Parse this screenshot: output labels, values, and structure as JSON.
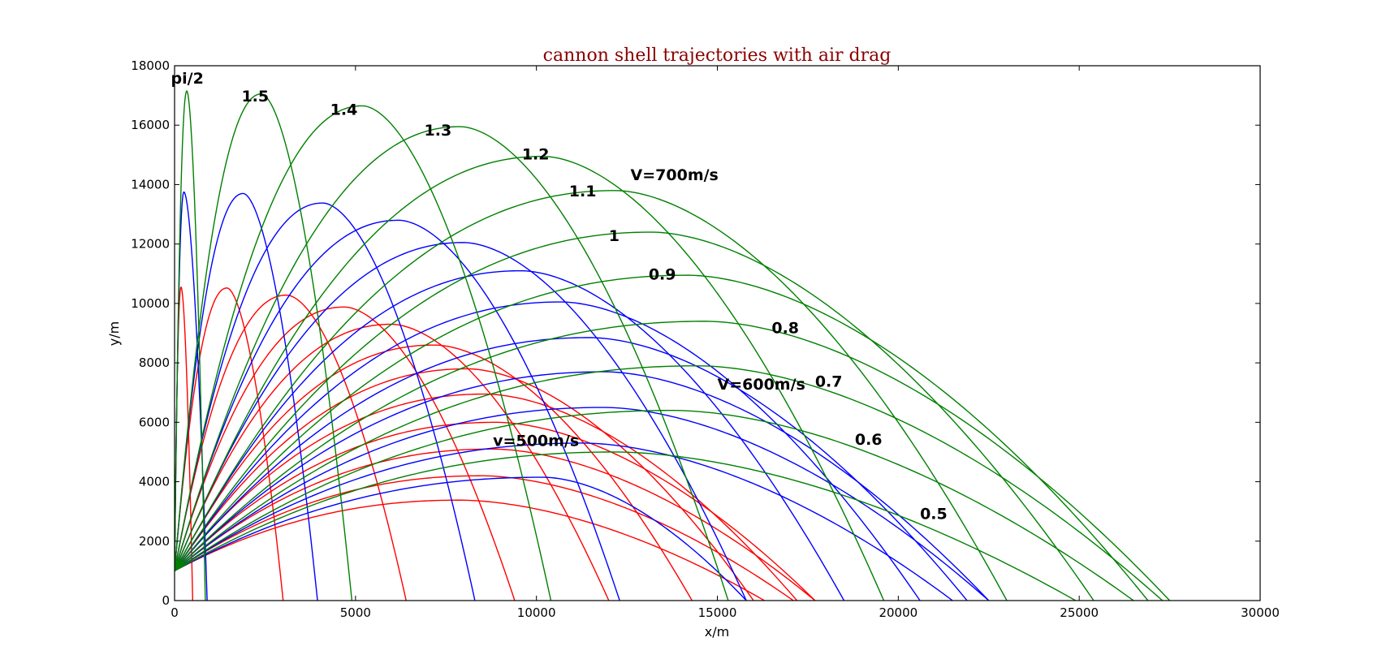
{
  "chart_data": {
    "type": "line",
    "title": "cannon shell trajectories with air drag",
    "xlabel": "x/m",
    "ylabel": "y/m",
    "xlim": [
      0,
      30000
    ],
    "ylim": [
      0,
      18000
    ],
    "xticks": [
      0,
      5000,
      10000,
      15000,
      20000,
      25000,
      30000
    ],
    "yticks": [
      0,
      2000,
      4000,
      6000,
      8000,
      10000,
      12000,
      14000,
      16000,
      18000
    ],
    "grid": false,
    "launch_height": 1000,
    "colors": {
      "v500": "#ff0000",
      "v600": "#0000ff",
      "v700": "#008000"
    },
    "series": [
      {
        "speed": "v500",
        "angle": "pi/2",
        "apex": [
          180,
          10550
        ],
        "landing": 500
      },
      {
        "speed": "v500",
        "angle": "1.5",
        "apex": [
          1450,
          10520
        ],
        "landing": 3000
      },
      {
        "speed": "v500",
        "angle": "1.4",
        "apex": [
          3100,
          10280
        ],
        "landing": 6400
      },
      {
        "speed": "v500",
        "angle": "1.3",
        "apex": [
          4700,
          9880
        ],
        "landing": 9400
      },
      {
        "speed": "v500",
        "angle": "1.2",
        "apex": [
          6000,
          9300
        ],
        "landing": 12000
      },
      {
        "speed": "v500",
        "angle": "1.1",
        "apex": [
          7200,
          8600
        ],
        "landing": 14300
      },
      {
        "speed": "v500",
        "angle": "1",
        "apex": [
          8100,
          7800
        ],
        "landing": 16000
      },
      {
        "speed": "v500",
        "angle": "0.9",
        "apex": [
          8600,
          6950
        ],
        "landing": 17200
      },
      {
        "speed": "v500",
        "angle": "0.8",
        "apex": [
          8900,
          6000
        ],
        "landing": 17700
      },
      {
        "speed": "v500",
        "angle": "0.7",
        "apex": [
          8800,
          5100
        ],
        "landing": 17700
      },
      {
        "speed": "v500",
        "angle": "0.6",
        "apex": [
          8500,
          4200
        ],
        "landing": 17100
      },
      {
        "speed": "v500",
        "angle": "0.5",
        "apex": [
          7900,
          3380
        ],
        "landing": 16300
      },
      {
        "speed": "v600",
        "angle": "pi/2",
        "apex": [
          260,
          13750
        ],
        "landing": 900
      },
      {
        "speed": "v600",
        "angle": "1.5",
        "apex": [
          1900,
          13700
        ],
        "landing": 3950
      },
      {
        "speed": "v600",
        "angle": "1.4",
        "apex": [
          4100,
          13380
        ],
        "landing": 8300
      },
      {
        "speed": "v600",
        "angle": "1.3",
        "apex": [
          6200,
          12800
        ],
        "landing": 12300
      },
      {
        "speed": "v600",
        "angle": "1.2",
        "apex": [
          8000,
          12050
        ],
        "landing": 15800
      },
      {
        "speed": "v600",
        "angle": "1.1",
        "apex": [
          9600,
          11100
        ],
        "landing": 18500
      },
      {
        "speed": "v600",
        "angle": "1",
        "apex": [
          10700,
          10050
        ],
        "landing": 20600
      },
      {
        "speed": "v600",
        "angle": "0.9",
        "apex": [
          11500,
          8850
        ],
        "landing": 21900
      },
      {
        "speed": "v600",
        "angle": "0.8",
        "apex": [
          11900,
          7700
        ],
        "landing": 22500
      },
      {
        "speed": "v600",
        "angle": "0.7",
        "apex": [
          11900,
          6500
        ],
        "landing": 22500
      },
      {
        "speed": "v600",
        "angle": "0.6",
        "apex": [
          11300,
          5300
        ],
        "landing": 21500
      },
      {
        "speed": "v600",
        "angle": "0.5",
        "apex": [
          10200,
          4150
        ],
        "landing": 15800
      },
      {
        "speed": "v700",
        "angle": "pi/2",
        "apex": [
          340,
          17150
        ],
        "landing": 850
      },
      {
        "speed": "v700",
        "angle": "1.5",
        "apex": [
          2400,
          17050
        ],
        "landing": 4900
      },
      {
        "speed": "v700",
        "angle": "1.4",
        "apex": [
          5200,
          16650
        ],
        "landing": 10400
      },
      {
        "speed": "v700",
        "angle": "1.3",
        "apex": [
          7900,
          15950
        ],
        "landing": 15300
      },
      {
        "speed": "v700",
        "angle": "1.2",
        "apex": [
          10200,
          14950
        ],
        "landing": 19600
      },
      {
        "speed": "v700",
        "angle": "1.1",
        "apex": [
          12200,
          13800
        ],
        "landing": 23000
      },
      {
        "speed": "v700",
        "angle": "1",
        "apex": [
          13200,
          12400
        ],
        "landing": 25400
      },
      {
        "speed": "v700",
        "angle": "0.9",
        "apex": [
          14200,
          10950
        ],
        "landing": 26900
      },
      {
        "speed": "v700",
        "angle": "0.8",
        "apex": [
          14700,
          9400
        ],
        "landing": 27500
      },
      {
        "speed": "v700",
        "angle": "0.7",
        "apex": [
          14500,
          7900
        ],
        "landing": 27300
      },
      {
        "speed": "v700",
        "angle": "0.6",
        "apex": [
          13800,
          6400
        ],
        "landing": 26500
      },
      {
        "speed": "v700",
        "angle": "0.5",
        "apex": [
          12200,
          5000
        ],
        "landing": 24900
      }
    ],
    "annotations": [
      {
        "text": "pi/2",
        "x": -100,
        "y": 17400
      },
      {
        "text": "1.5",
        "x": 1850,
        "y": 16800
      },
      {
        "text": "1.4",
        "x": 4300,
        "y": 16350
      },
      {
        "text": "1.3",
        "x": 6900,
        "y": 15650
      },
      {
        "text": "1.2",
        "x": 9600,
        "y": 14850
      },
      {
        "text": "V=700m/s",
        "x": 12600,
        "y": 14150
      },
      {
        "text": "1.1",
        "x": 10900,
        "y": 13600
      },
      {
        "text": "1",
        "x": 12000,
        "y": 12100
      },
      {
        "text": "0.9",
        "x": 13100,
        "y": 10800
      },
      {
        "text": "0.8",
        "x": 16500,
        "y": 9000
      },
      {
        "text": "V=600m/s",
        "x": 15000,
        "y": 7100
      },
      {
        "text": "0.7",
        "x": 17700,
        "y": 7200
      },
      {
        "text": "0.6",
        "x": 18800,
        "y": 5250
      },
      {
        "text": "v=500m/s",
        "x": 8800,
        "y": 5200
      },
      {
        "text": "0.5",
        "x": 20600,
        "y": 2750
      }
    ]
  }
}
